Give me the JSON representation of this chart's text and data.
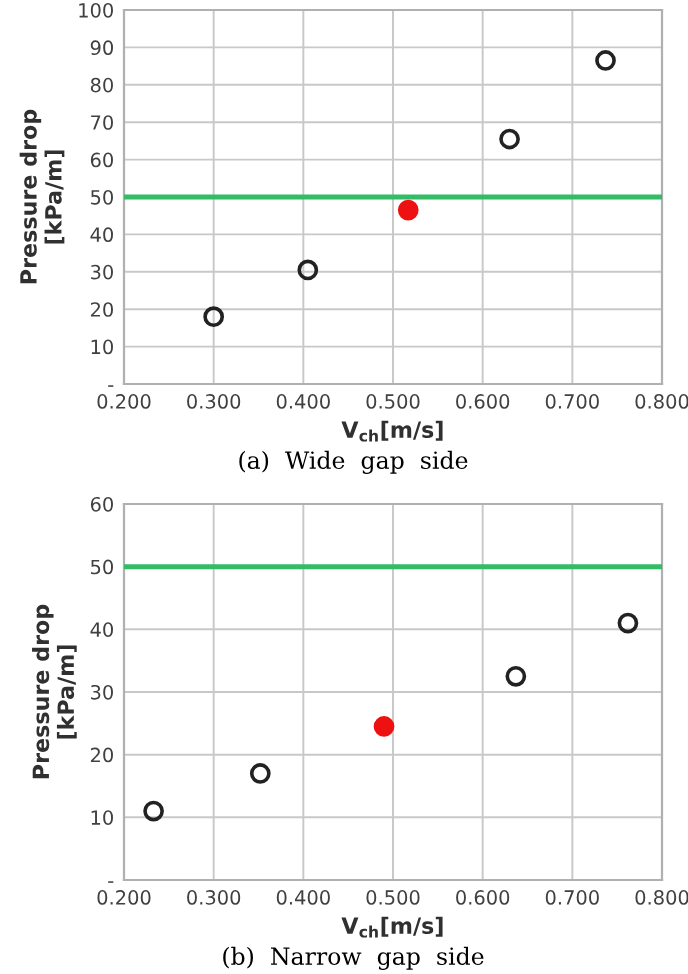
{
  "chart_data": [
    {
      "type": "scatter",
      "xlabel": "V$_{ch}$[m/s]",
      "ylabel": "Pressure drop\n[kPa/m]",
      "annotations": [
        "(a)  Wide  gap  side"
      ],
      "series": [
        {
          "color": "#222222",
          "marker": "circle",
          "x": [
            0.3,
            0.405,
            0.63,
            0.737
          ],
          "values": [
            18,
            30.5,
            65.5,
            86.5
          ]
        },
        {
          "color": "#ee1111",
          "marker": "circle",
          "x": [
            0.517
          ],
          "values": [
            46.5
          ]
        }
      ],
      "xlim": [
        0.2,
        0.8
      ],
      "xticks": [
        {
          "value": 0.2,
          "label": "0.200"
        },
        {
          "value": 0.3,
          "label": "0.300"
        },
        {
          "value": 0.4,
          "label": "0.400"
        },
        {
          "value": 0.5,
          "label": "0.500"
        },
        {
          "value": 0.6,
          "label": "0.600"
        },
        {
          "value": 0.7,
          "label": "0.700"
        },
        {
          "value": 0.8,
          "label": "0.800"
        }
      ],
      "ylim": [
        0,
        100
      ],
      "yticks": [
        {
          "value": 0,
          "label": "-"
        },
        10,
        20,
        30,
        40,
        50,
        60,
        70,
        80,
        90,
        100
      ],
      "ref_lines": [
        {
          "axis": "y",
          "value": 50,
          "color": "#33bb66"
        }
      ],
      "grid": true,
      "legend": false
    },
    {
      "type": "scatter",
      "xlabel": "V$_{ch}$[m/s]",
      "ylabel": "Pressure drop\n[kPa/m]",
      "annotations": [
        "(b)  Narrow  gap  side"
      ],
      "series": [
        {
          "color": "#222222",
          "marker": "circle",
          "x": [
            0.233,
            0.352,
            0.637,
            0.762
          ],
          "values": [
            11,
            17,
            32.5,
            41
          ]
        },
        {
          "color": "#ee1111",
          "marker": "circle",
          "x": [
            0.49
          ],
          "values": [
            24.5
          ]
        }
      ],
      "xlim": [
        0.2,
        0.8
      ],
      "xticks": [
        {
          "value": 0.2,
          "label": "0.200"
        },
        {
          "value": 0.3,
          "label": "0.300"
        },
        {
          "value": 0.4,
          "label": "0.400"
        },
        {
          "value": 0.5,
          "label": "0.500"
        },
        {
          "value": 0.6,
          "label": "0.600"
        },
        {
          "value": 0.7,
          "label": "0.700"
        },
        {
          "value": 0.8,
          "label": "0.800"
        }
      ],
      "ylim": [
        0,
        60
      ],
      "yticks": [
        {
          "value": 0,
          "label": "-"
        },
        10,
        20,
        30,
        40,
        50,
        60
      ],
      "ref_lines": [
        {
          "axis": "y",
          "value": 50,
          "color": "#33bb66"
        }
      ],
      "grid": true,
      "legend": false
    }
  ]
}
